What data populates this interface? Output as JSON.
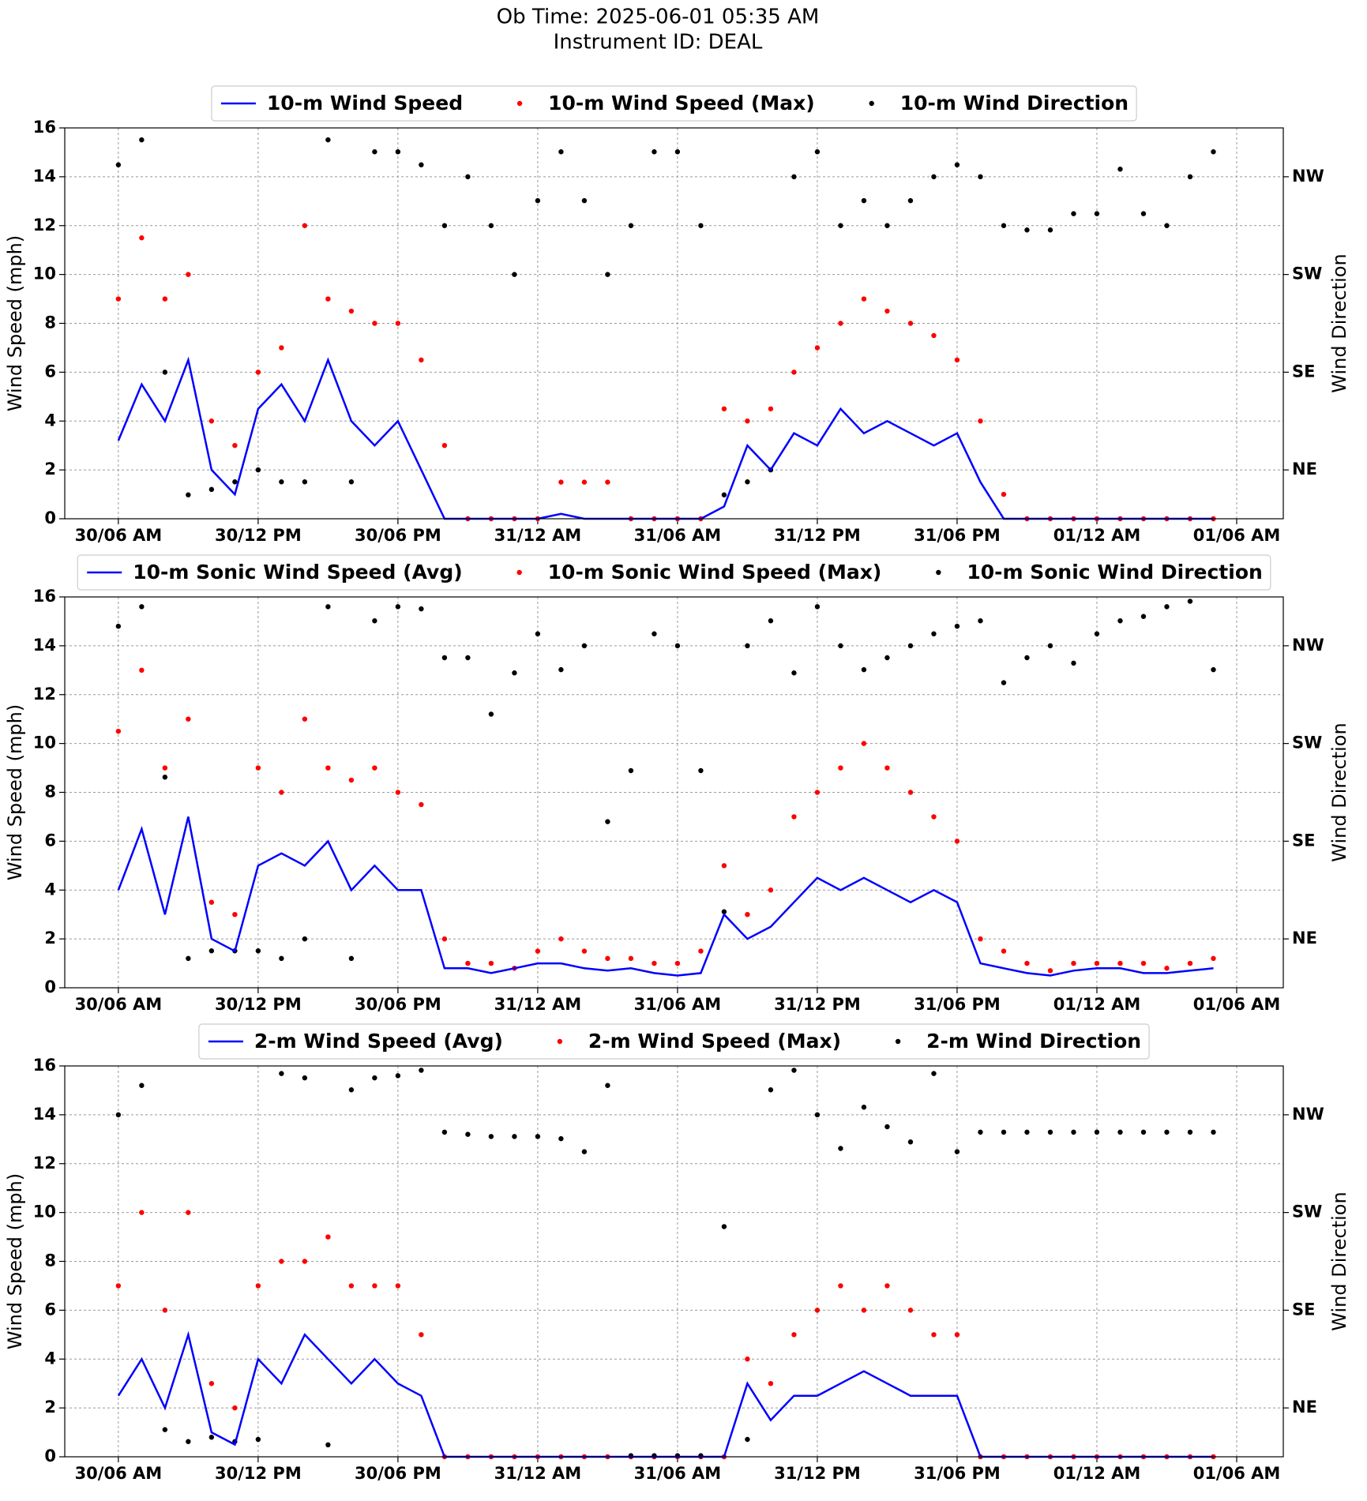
{
  "title": "Ob Time: 2025-06-01 05:35 AM",
  "subtitle": "Instrument ID: DEAL",
  "chart_data": [
    {
      "type": "line",
      "ylabel": "Wind Speed (mph)",
      "y2label": "Wind Direction",
      "grid": true,
      "legend": "upper center",
      "x": [
        6,
        7,
        8,
        9,
        10,
        11,
        12,
        13,
        14,
        15,
        16,
        17,
        18,
        19,
        20,
        21,
        22,
        23,
        24,
        25,
        26,
        27,
        28,
        29,
        30,
        31,
        32,
        33,
        34,
        35,
        36,
        37,
        38,
        39,
        40,
        41,
        42,
        43,
        44,
        45,
        46,
        47,
        48,
        49,
        50,
        51,
        52,
        53
      ],
      "xlim": [
        3.7,
        56
      ],
      "xticks": [
        {
          "value": 6,
          "label": "30/06 AM"
        },
        {
          "value": 12,
          "label": "30/12 PM"
        },
        {
          "value": 18,
          "label": "30/06 PM"
        },
        {
          "value": 24,
          "label": "31/12 AM"
        },
        {
          "value": 30,
          "label": "31/06 AM"
        },
        {
          "value": 36,
          "label": "31/12 PM"
        },
        {
          "value": 42,
          "label": "31/06 PM"
        },
        {
          "value": 48,
          "label": "01/12 AM"
        },
        {
          "value": 54,
          "label": "01/06 AM"
        }
      ],
      "ylim": [
        0,
        16
      ],
      "yticks": [
        0,
        2,
        4,
        6,
        8,
        10,
        12,
        14,
        16
      ],
      "y2lim": [
        0,
        360
      ],
      "y2ticks": [
        {
          "value": 45,
          "label": "NE"
        },
        {
          "value": 135,
          "label": "SE"
        },
        {
          "value": 225,
          "label": "SW"
        },
        {
          "value": 315,
          "label": "NW"
        }
      ],
      "series": [
        {
          "name": "10-m Wind Speed",
          "color": "#0000ff",
          "style": "line",
          "values": [
            3.2,
            5.5,
            4,
            6.5,
            2,
            1,
            4.5,
            5.5,
            4,
            6.5,
            4,
            3,
            4,
            2,
            0,
            0,
            0,
            0,
            0,
            0.2,
            0,
            0,
            0,
            0,
            0,
            0,
            0.5,
            3,
            2,
            3.5,
            3,
            4.5,
            3.5,
            4,
            3.5,
            3,
            3.5,
            1.5,
            0,
            0,
            0,
            0,
            0,
            0,
            0,
            0,
            0,
            0
          ]
        },
        {
          "name": "10-m Wind Speed (Max)",
          "color": "#ff0000",
          "style": "scatter",
          "values": [
            9,
            11.5,
            9,
            10,
            4,
            3,
            6,
            7,
            12,
            9,
            8.5,
            8,
            8,
            6.5,
            3,
            0,
            0,
            0,
            0,
            1.5,
            1.5,
            1.5,
            0,
            0,
            0,
            0,
            4.5,
            4,
            4.5,
            6,
            7,
            8,
            9,
            8.5,
            8,
            7.5,
            6.5,
            4,
            1,
            0,
            0,
            0,
            0,
            0,
            0,
            0,
            0,
            0
          ]
        },
        {
          "name": "10-m Wind Direction",
          "color": "#000000",
          "style": "scatter",
          "axis": "y2",
          "values": [
            326,
            349,
            135,
            22,
            27,
            34,
            45,
            34,
            34,
            349,
            34,
            338,
            338,
            326,
            270,
            315,
            270,
            225,
            293,
            338,
            293,
            225,
            270,
            338,
            338,
            270,
            22,
            34,
            45,
            315,
            338,
            270,
            293,
            270,
            293,
            315,
            326,
            315,
            270,
            266,
            266,
            281,
            281,
            322,
            281,
            270,
            315,
            338
          ]
        }
      ]
    },
    {
      "type": "line",
      "ylabel": "Wind Speed (mph)",
      "y2label": "Wind Direction",
      "grid": true,
      "legend": "upper center",
      "x": [
        6,
        7,
        8,
        9,
        10,
        11,
        12,
        13,
        14,
        15,
        16,
        17,
        18,
        19,
        20,
        21,
        22,
        23,
        24,
        25,
        26,
        27,
        28,
        29,
        30,
        31,
        32,
        33,
        34,
        35,
        36,
        37,
        38,
        39,
        40,
        41,
        42,
        43,
        44,
        45,
        46,
        47,
        48,
        49,
        50,
        51,
        52,
        53
      ],
      "xlim": [
        3.7,
        56
      ],
      "xticks": [
        {
          "value": 6,
          "label": "30/06 AM"
        },
        {
          "value": 12,
          "label": "30/12 PM"
        },
        {
          "value": 18,
          "label": "30/06 PM"
        },
        {
          "value": 24,
          "label": "31/12 AM"
        },
        {
          "value": 30,
          "label": "31/06 AM"
        },
        {
          "value": 36,
          "label": "31/12 PM"
        },
        {
          "value": 42,
          "label": "31/06 PM"
        },
        {
          "value": 48,
          "label": "01/12 AM"
        },
        {
          "value": 54,
          "label": "01/06 AM"
        }
      ],
      "ylim": [
        0,
        16
      ],
      "yticks": [
        0,
        2,
        4,
        6,
        8,
        10,
        12,
        14,
        16
      ],
      "y2lim": [
        0,
        360
      ],
      "y2ticks": [
        {
          "value": 45,
          "label": "NE"
        },
        {
          "value": 135,
          "label": "SE"
        },
        {
          "value": 225,
          "label": "SW"
        },
        {
          "value": 315,
          "label": "NW"
        }
      ],
      "series": [
        {
          "name": "10-m Sonic Wind Speed (Avg)",
          "color": "#0000ff",
          "style": "line",
          "values": [
            4,
            6.5,
            3,
            7,
            2,
            1.5,
            5,
            5.5,
            5,
            6,
            4,
            5,
            4,
            4,
            0.8,
            0.8,
            0.6,
            0.8,
            1,
            1,
            0.8,
            0.7,
            0.8,
            0.6,
            0.5,
            0.6,
            3,
            2,
            2.5,
            3.5,
            4.5,
            4,
            4.5,
            4,
            3.5,
            4,
            3.5,
            1,
            0.8,
            0.6,
            0.5,
            0.7,
            0.8,
            0.8,
            0.6,
            0.6,
            0.7,
            0.8
          ]
        },
        {
          "name": "10-m Sonic Wind Speed (Max)",
          "color": "#ff0000",
          "style": "scatter",
          "values": [
            10.5,
            13,
            9,
            11,
            3.5,
            3,
            9,
            8,
            11,
            9,
            8.5,
            9,
            8,
            7.5,
            2,
            1,
            1,
            0.8,
            1.5,
            2,
            1.5,
            1.2,
            1.2,
            1,
            1,
            1.5,
            5,
            3,
            4,
            7,
            8,
            9,
            10,
            9,
            8,
            7,
            6,
            2,
            1.5,
            1,
            0.7,
            1,
            1,
            1,
            1,
            0.8,
            1,
            1.2
          ]
        },
        {
          "name": "10-m Sonic Wind Direction",
          "color": "#000000",
          "style": "scatter",
          "axis": "y2",
          "values": [
            333,
            351,
            194,
            27,
            34,
            34,
            34,
            27,
            45,
            351,
            27,
            338,
            351,
            349,
            304,
            304,
            252,
            290,
            326,
            293,
            315,
            153,
            200,
            326,
            315,
            200,
            70,
            315,
            338,
            290,
            351,
            315,
            293,
            304,
            315,
            326,
            333,
            338,
            281,
            304,
            315,
            299,
            326,
            338,
            342,
            351,
            356,
            293
          ]
        }
      ]
    },
    {
      "type": "line",
      "ylabel": "Wind Speed (mph)",
      "y2label": "Wind Direction",
      "grid": true,
      "legend": "upper center",
      "x": [
        6,
        7,
        8,
        9,
        10,
        11,
        12,
        13,
        14,
        15,
        16,
        17,
        18,
        19,
        20,
        21,
        22,
        23,
        24,
        25,
        26,
        27,
        28,
        29,
        30,
        31,
        32,
        33,
        34,
        35,
        36,
        37,
        38,
        39,
        40,
        41,
        42,
        43,
        44,
        45,
        46,
        47,
        48,
        49,
        50,
        51,
        52,
        53
      ],
      "xlim": [
        3.7,
        56
      ],
      "xticks": [
        {
          "value": 6,
          "label": "30/06 AM"
        },
        {
          "value": 12,
          "label": "30/12 PM"
        },
        {
          "value": 18,
          "label": "30/06 PM"
        },
        {
          "value": 24,
          "label": "31/12 AM"
        },
        {
          "value": 30,
          "label": "31/06 AM"
        },
        {
          "value": 36,
          "label": "31/12 PM"
        },
        {
          "value": 42,
          "label": "31/06 PM"
        },
        {
          "value": 48,
          "label": "01/12 AM"
        },
        {
          "value": 54,
          "label": "01/06 AM"
        }
      ],
      "ylim": [
        0,
        16
      ],
      "yticks": [
        0,
        2,
        4,
        6,
        8,
        10,
        12,
        14,
        16
      ],
      "y2lim": [
        0,
        360
      ],
      "y2ticks": [
        {
          "value": 45,
          "label": "NE"
        },
        {
          "value": 135,
          "label": "SE"
        },
        {
          "value": 225,
          "label": "SW"
        },
        {
          "value": 315,
          "label": "NW"
        }
      ],
      "series": [
        {
          "name": "2-m Wind Speed (Avg)",
          "color": "#0000ff",
          "style": "line",
          "values": [
            2.5,
            4,
            2,
            5,
            1,
            0.5,
            4,
            3,
            5,
            4,
            3,
            4,
            3,
            2.5,
            0,
            0,
            0,
            0,
            0,
            0,
            0,
            0,
            0,
            0,
            0,
            0,
            0,
            3,
            1.5,
            2.5,
            2.5,
            3,
            3.5,
            3,
            2.5,
            2.5,
            2.5,
            0,
            0,
            0,
            0,
            0,
            0,
            0,
            0,
            0,
            0,
            0
          ]
        },
        {
          "name": "2-m Wind Speed (Max)",
          "color": "#ff0000",
          "style": "scatter",
          "values": [
            7,
            10,
            6,
            10,
            3,
            2,
            7,
            8,
            8,
            9,
            7,
            7,
            7,
            5,
            0,
            0,
            0,
            0,
            0,
            0,
            0,
            0,
            0,
            0,
            0,
            0,
            0,
            4,
            3,
            5,
            6,
            7,
            6,
            7,
            6,
            5,
            5,
            0,
            0,
            0,
            0,
            0,
            0,
            0,
            0,
            0,
            0,
            0
          ]
        },
        {
          "name": "2-m Wind Direction",
          "color": "#000000",
          "style": "scatter",
          "axis": "y2",
          "values": [
            315,
            342,
            25,
            14,
            18,
            14,
            16,
            353,
            349,
            11,
            338,
            349,
            351,
            356,
            299,
            297,
            295,
            295,
            295,
            293,
            281,
            342,
            1,
            1,
            1,
            1,
            212,
            16,
            338,
            356,
            315,
            284,
            322,
            304,
            290,
            353,
            281,
            299,
            299,
            299,
            299,
            299,
            299,
            299,
            299,
            299,
            299,
            299
          ]
        }
      ]
    }
  ]
}
